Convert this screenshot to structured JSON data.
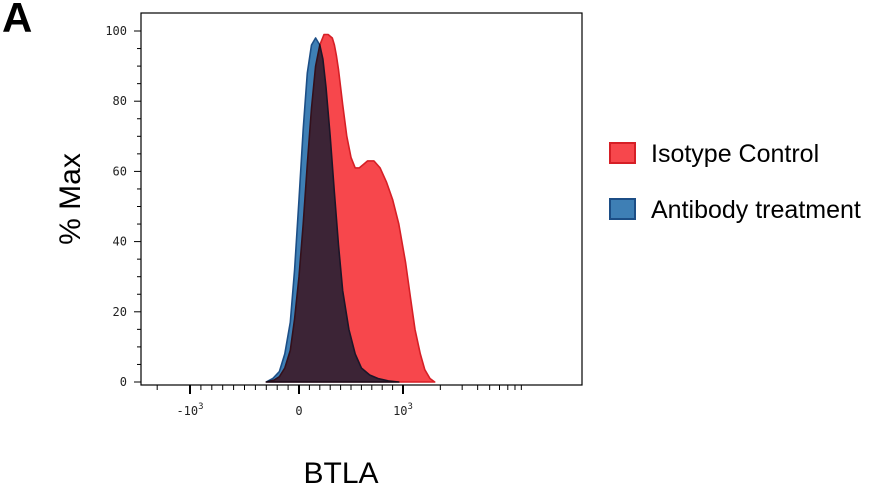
{
  "panel_label": "A",
  "chart_data": {
    "type": "area",
    "title": "",
    "xlabel": "BTLA",
    "ylabel": "% Max",
    "x_scale": "biexponential",
    "ylim": [
      0,
      105
    ],
    "y_ticks": [
      0,
      20,
      40,
      60,
      80,
      100
    ],
    "x_ticks": [
      {
        "value": -1000,
        "label": "-10",
        "exp": "3"
      },
      {
        "value": 0,
        "label": "0",
        "exp": ""
      },
      {
        "value": 1000,
        "label": "10",
        "exp": "3"
      }
    ],
    "grid": false,
    "legend_position": "right",
    "series": [
      {
        "name": "Isotype Control",
        "fill": "#f7474c",
        "stroke": "#d61f26",
        "x": [
          -300,
          -230,
          -180,
          -130,
          -80,
          -40,
          0,
          40,
          80,
          120,
          160,
          200,
          240,
          280,
          320,
          340,
          360,
          380,
          420,
          460,
          500,
          540,
          580,
          620,
          660,
          720,
          780,
          840,
          900,
          960,
          1050,
          1150,
          1250,
          1380,
          1500,
          1650,
          1800
        ],
        "y": [
          0,
          0.5,
          1.5,
          4,
          9,
          18,
          30,
          45,
          62,
          78,
          90,
          96,
          99,
          99,
          98,
          96,
          93,
          89,
          79,
          70,
          64,
          61,
          61,
          62,
          63,
          63,
          61,
          57,
          52,
          45,
          34,
          24,
          15,
          8,
          3.5,
          1,
          0
        ]
      },
      {
        "name": "Antibody treatment",
        "fill": "#3e7fb5",
        "stroke": "#1c4e86",
        "x": [
          -300,
          -240,
          -180,
          -130,
          -80,
          -40,
          0,
          40,
          80,
          120,
          160,
          200,
          230,
          260,
          300,
          340,
          380,
          420,
          480,
          540,
          600,
          680,
          760,
          860,
          960
        ],
        "y": [
          0,
          1,
          3,
          8,
          17,
          32,
          52,
          72,
          88,
          96,
          98,
          96,
          92,
          84,
          70,
          54,
          39,
          26,
          15,
          8,
          4,
          2,
          1,
          0.3,
          0
        ]
      }
    ]
  }
}
